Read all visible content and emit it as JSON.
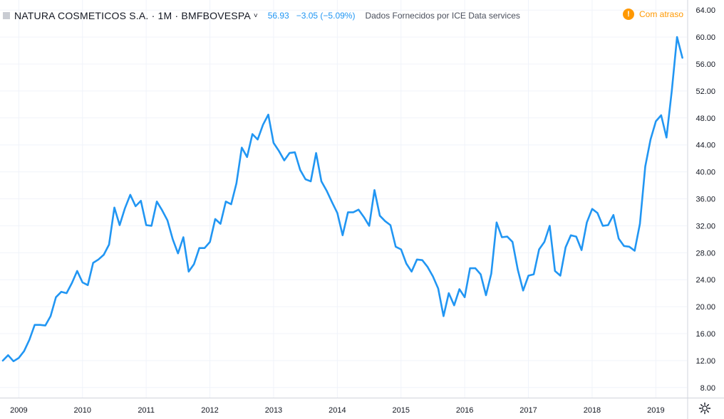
{
  "legend": {
    "title": "NATURA COSMETICOS S.A. · 1M · BMFBOVESPA",
    "last": "56.93",
    "change": "−3.05 (−5.09%)",
    "source": "Dados Fornecidos por ICE Data services"
  },
  "status": {
    "label": "Com atraso",
    "icon": "exclamation-icon"
  },
  "settings": {
    "icon": "gear-icon"
  },
  "colors": {
    "line": "#2196f3",
    "grid": "#f0f3fa",
    "axis_text": "#131722",
    "delay": "#ff9800"
  },
  "chart_data": {
    "type": "line",
    "title": "",
    "xlabel": "",
    "ylabel": "",
    "ylim": [
      6.5,
      65.5
    ],
    "y_ticks": [
      "8.00",
      "12.00",
      "16.00",
      "20.00",
      "24.00",
      "28.00",
      "32.00",
      "36.00",
      "40.00",
      "44.00",
      "48.00",
      "52.00",
      "56.00",
      "60.00",
      "64.00"
    ],
    "x_ticks": [
      "2009",
      "2010",
      "2011",
      "2012",
      "2013",
      "2014",
      "2015",
      "2016",
      "2017",
      "2018",
      "2019"
    ],
    "grid": true,
    "series": [
      {
        "name": "",
        "x": [
          "2008-10",
          "2008-11",
          "2008-12",
          "2009-01",
          "2009-02",
          "2009-03",
          "2009-04",
          "2009-05",
          "2009-06",
          "2009-07",
          "2009-08",
          "2009-09",
          "2009-10",
          "2009-11",
          "2009-12",
          "2010-01",
          "2010-02",
          "2010-03",
          "2010-04",
          "2010-05",
          "2010-06",
          "2010-07",
          "2010-08",
          "2010-09",
          "2010-10",
          "2010-11",
          "2010-12",
          "2011-01",
          "2011-02",
          "2011-03",
          "2011-04",
          "2011-05",
          "2011-06",
          "2011-07",
          "2011-08",
          "2011-09",
          "2011-10",
          "2011-11",
          "2011-12",
          "2012-01",
          "2012-02",
          "2012-03",
          "2012-04",
          "2012-05",
          "2012-06",
          "2012-07",
          "2012-08",
          "2012-09",
          "2012-10",
          "2012-11",
          "2012-12",
          "2013-01",
          "2013-02",
          "2013-03",
          "2013-04",
          "2013-05",
          "2013-06",
          "2013-07",
          "2013-08",
          "2013-09",
          "2013-10",
          "2013-11",
          "2013-12",
          "2014-01",
          "2014-02",
          "2014-03",
          "2014-04",
          "2014-05",
          "2014-06",
          "2014-07",
          "2014-08",
          "2014-09",
          "2014-10",
          "2014-11",
          "2014-12",
          "2015-01",
          "2015-02",
          "2015-03",
          "2015-04",
          "2015-05",
          "2015-06",
          "2015-07",
          "2015-08",
          "2015-09",
          "2015-10",
          "2015-11",
          "2015-12",
          "2016-01",
          "2016-02",
          "2016-03",
          "2016-04",
          "2016-05",
          "2016-06",
          "2016-07",
          "2016-08",
          "2016-09",
          "2016-10",
          "2016-11",
          "2016-12",
          "2017-01",
          "2017-02",
          "2017-03",
          "2017-04",
          "2017-05",
          "2017-06",
          "2017-07",
          "2017-08",
          "2017-09",
          "2017-10",
          "2017-11",
          "2017-12",
          "2018-01",
          "2018-02",
          "2018-03",
          "2018-04",
          "2018-05",
          "2018-06",
          "2018-07",
          "2018-08",
          "2018-09",
          "2018-10",
          "2018-11",
          "2018-12",
          "2019-01",
          "2019-02",
          "2019-03",
          "2019-04",
          "2019-05",
          "2019-06"
        ],
        "values": [
          12.0,
          12.8,
          11.9,
          12.4,
          13.4,
          15.1,
          17.3,
          17.3,
          17.2,
          18.6,
          21.4,
          22.2,
          22.0,
          23.5,
          25.3,
          23.6,
          23.2,
          26.5,
          27.0,
          27.7,
          29.2,
          34.7,
          32.1,
          34.6,
          36.6,
          34.9,
          35.7,
          32.1,
          32.0,
          35.6,
          34.3,
          32.8,
          30.0,
          27.9,
          30.3,
          25.2,
          26.3,
          28.7,
          28.7,
          29.6,
          33.0,
          32.3,
          35.6,
          35.2,
          38.3,
          43.6,
          42.2,
          45.6,
          44.8,
          47.0,
          48.5,
          44.3,
          43.1,
          41.7,
          42.8,
          42.9,
          40.3,
          38.9,
          38.6,
          42.8,
          38.6,
          37.2,
          35.5,
          33.9,
          30.6,
          34.0,
          34.0,
          34.4,
          33.3,
          32.0,
          37.3,
          33.5,
          32.7,
          32.1,
          28.9,
          28.5,
          26.4,
          25.2,
          27.0,
          26.9,
          25.9,
          24.5,
          22.7,
          18.6,
          22.0,
          20.2,
          22.6,
          21.4,
          25.7,
          25.7,
          24.8,
          21.7,
          24.9,
          32.5,
          30.3,
          30.4,
          29.6,
          25.5,
          22.4,
          24.6,
          24.8,
          28.5,
          29.6,
          32.0,
          25.3,
          24.6,
          28.8,
          30.6,
          30.4,
          28.4,
          32.5,
          34.5,
          33.9,
          32.0,
          32.1,
          33.6,
          30.1,
          29.0,
          28.9,
          28.3,
          32.3,
          40.8,
          44.8,
          47.5,
          48.4,
          45.1,
          52.0,
          60.0,
          56.93
        ]
      }
    ]
  }
}
